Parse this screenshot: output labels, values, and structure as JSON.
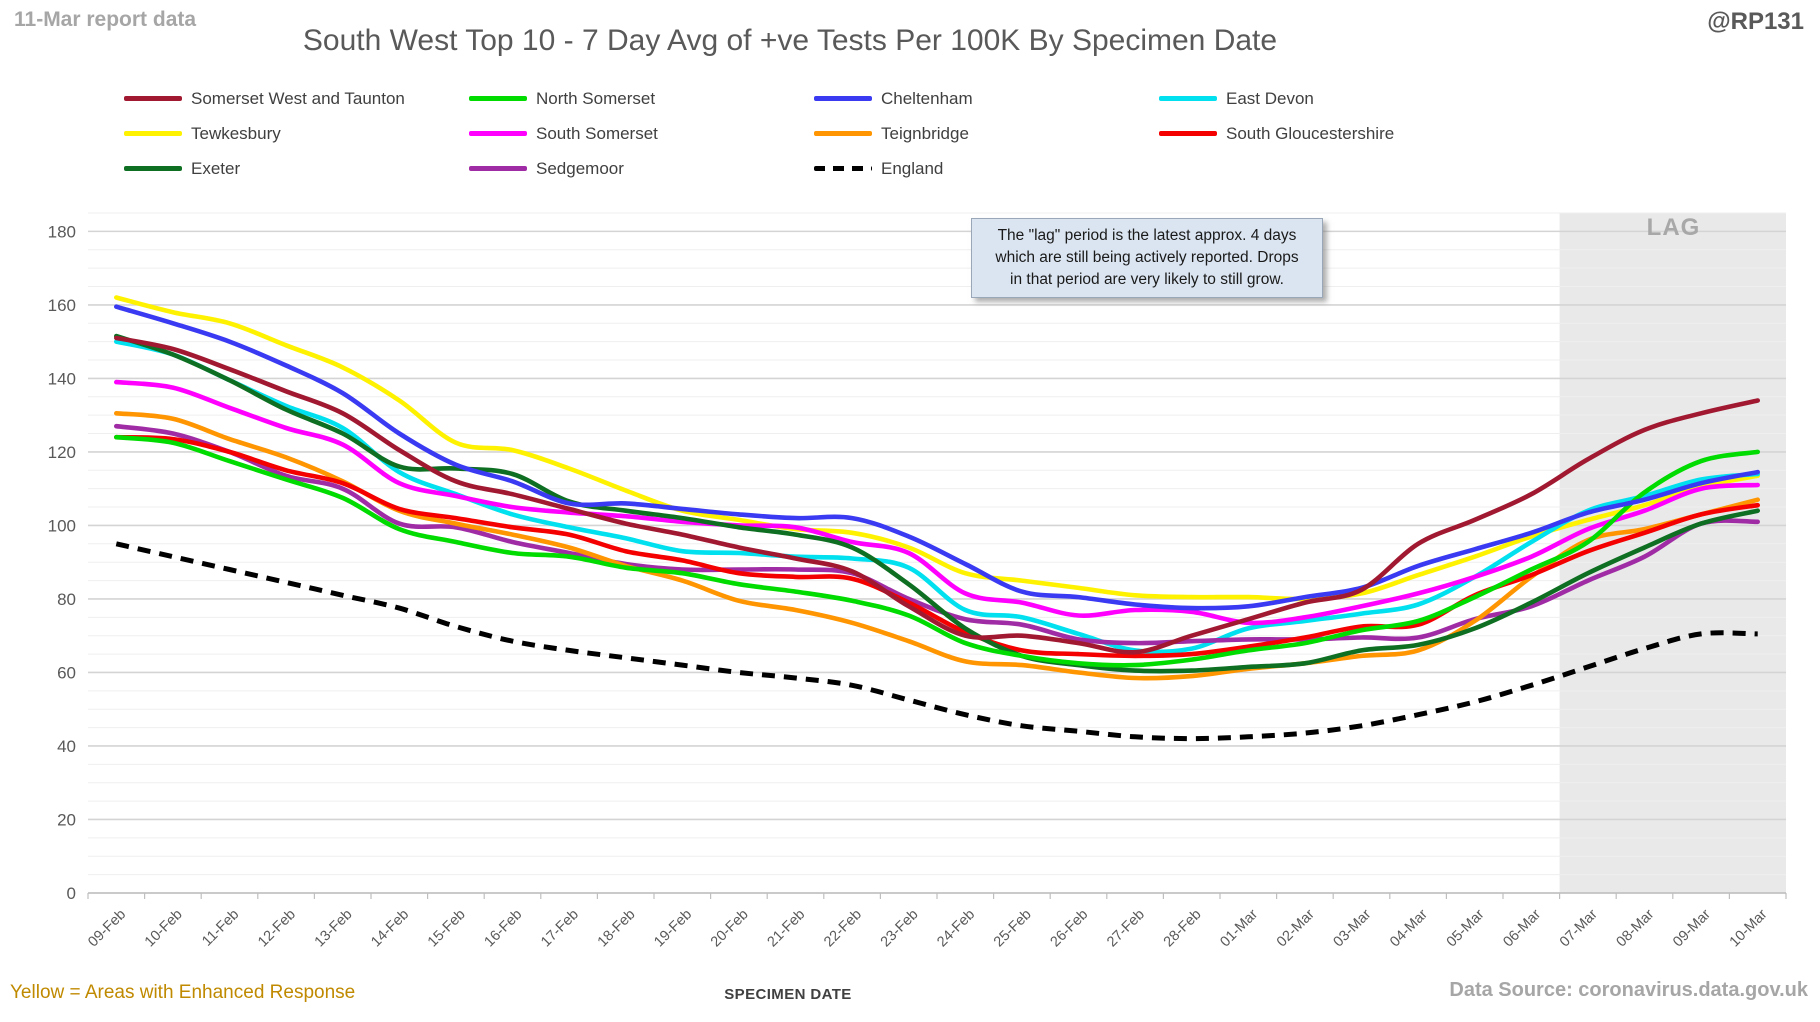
{
  "header": {
    "report_note": "11-Mar report data",
    "title": "South West Top 10 - 7 Day Avg of +ve Tests Per 100K By Specimen Date",
    "handle": "@RP131"
  },
  "annotation": {
    "lines": [
      "The \"lag\" period is the latest approx. 4 days",
      "which are still being actively reported.  Drops",
      "in that period are very likely to still grow."
    ]
  },
  "lag_label": "LAG",
  "footer": {
    "enhanced_note": "Yellow = Areas with Enhanced Response",
    "xlabel": "SPECIMEN DATE",
    "source": "Data Source: coronavirus.data.gov.uk"
  },
  "chart_data": {
    "type": "line",
    "title": "South West Top 10 - 7 Day Avg of +ve Tests Per 100K By Specimen Date",
    "xlabel": "SPECIMEN DATE",
    "ylabel": "",
    "ylim": [
      0,
      185
    ],
    "ytick_step": 20,
    "minor_grid_step": 5,
    "grid": "on",
    "legend_position": "top",
    "lag_band_start": "07-Mar",
    "lag_band_color": "#e9e9e9",
    "categories": [
      "09-Feb",
      "10-Feb",
      "11-Feb",
      "12-Feb",
      "13-Feb",
      "14-Feb",
      "15-Feb",
      "16-Feb",
      "17-Feb",
      "18-Feb",
      "19-Feb",
      "20-Feb",
      "21-Feb",
      "22-Feb",
      "23-Feb",
      "24-Feb",
      "25-Feb",
      "26-Feb",
      "27-Feb",
      "28-Feb",
      "01-Mar",
      "02-Mar",
      "03-Mar",
      "04-Mar",
      "05-Mar",
      "06-Mar",
      "07-Mar",
      "08-Mar",
      "09-Mar",
      "10-Mar"
    ],
    "draw_order": [
      4,
      3,
      5,
      9,
      6,
      7,
      8,
      1,
      2,
      0,
      10
    ],
    "series": [
      {
        "name": "Somerset West and Taunton",
        "color": "#a11931",
        "dash": false,
        "values": [
          151,
          148,
          142.5,
          136.5,
          130.5,
          120.5,
          112,
          108.5,
          104.5,
          100.5,
          97.5,
          94,
          91,
          87.5,
          78,
          70,
          70,
          68,
          65.5,
          70,
          74.5,
          79,
          82.5,
          95,
          101.5,
          108.5,
          118,
          126,
          130.5,
          134
        ]
      },
      {
        "name": "North Somerset",
        "color": "#00db00",
        "dash": false,
        "values": [
          124,
          122.5,
          117.5,
          112.5,
          107.5,
          99,
          95.5,
          92.5,
          91.5,
          88.5,
          87,
          84,
          82,
          79.5,
          75.5,
          68,
          64.5,
          62.5,
          62,
          63.5,
          66,
          68,
          71.5,
          74,
          80.5,
          88,
          95.5,
          109,
          117.5,
          120
        ]
      },
      {
        "name": "Cheltenham",
        "color": "#3a3af2",
        "dash": false,
        "values": [
          159.5,
          155,
          150,
          143.5,
          136,
          125,
          116.5,
          112,
          106,
          106,
          104.5,
          103,
          102,
          102,
          97,
          89.5,
          82,
          80.5,
          78.5,
          77.5,
          78,
          80.5,
          83,
          89,
          93.5,
          98,
          103.5,
          107,
          111.5,
          114.5
        ]
      },
      {
        "name": "East Devon",
        "color": "#00e0ee",
        "dash": false,
        "values": [
          150,
          146.5,
          139.5,
          132.5,
          126.5,
          114.5,
          108.5,
          103,
          99.5,
          96.5,
          93,
          92.5,
          91.5,
          91,
          88.5,
          77,
          75,
          70.5,
          66,
          66.5,
          72,
          74,
          76,
          78.5,
          86,
          95.5,
          104,
          108,
          112.5,
          114
        ]
      },
      {
        "name": "Tewkesbury",
        "color": "#fff200",
        "dash": false,
        "values": [
          162,
          158,
          155,
          149,
          143,
          134,
          122.5,
          120.5,
          115.5,
          109.5,
          104,
          101.5,
          99,
          98,
          94,
          87,
          85,
          83,
          81,
          80.5,
          80.5,
          80,
          81.5,
          86.5,
          91.5,
          97,
          101.5,
          105.5,
          110.5,
          113.5
        ]
      },
      {
        "name": "South Somerset",
        "color": "#ff00ff",
        "dash": false,
        "values": [
          139,
          137.5,
          132,
          126.5,
          122,
          111.5,
          108,
          105,
          103.5,
          102.5,
          101,
          100,
          99.5,
          95.5,
          92.5,
          81.5,
          79,
          75.5,
          77,
          76.5,
          73.5,
          75,
          78,
          81.5,
          86,
          91.5,
          99,
          104,
          110,
          111
        ]
      },
      {
        "name": "Teignbridge",
        "color": "#ff9500",
        "dash": false,
        "values": [
          130.5,
          129,
          123.5,
          118.5,
          112,
          104,
          100.5,
          97.5,
          94,
          89,
          85,
          79.5,
          77,
          73.5,
          68.5,
          63,
          62,
          60,
          58.5,
          59,
          61,
          62.5,
          64.5,
          66,
          74,
          86,
          96,
          99,
          103,
          107
        ]
      },
      {
        "name": "South Gloucestershire",
        "color": "#f40000",
        "dash": false,
        "values": [
          124,
          123.5,
          120,
          115,
          111.5,
          104.5,
          102,
          99.5,
          97.5,
          93,
          90.5,
          87,
          86,
          85.5,
          79,
          71,
          66,
          65,
          64.5,
          65,
          67,
          69.5,
          72.5,
          73,
          81,
          86.5,
          93,
          98,
          103,
          105.5
        ]
      },
      {
        "name": "Exeter",
        "color": "#0e6f22",
        "dash": false,
        "values": [
          151.5,
          146.5,
          139.5,
          131.5,
          125,
          116,
          115.5,
          114,
          106.5,
          104,
          102,
          99.5,
          97.5,
          94,
          84,
          72,
          64.5,
          62,
          60.5,
          60.5,
          61.5,
          62.5,
          66,
          67.5,
          72,
          79,
          87,
          94,
          100.5,
          104
        ]
      },
      {
        "name": "Sedgemoor",
        "color": "#a02ca5",
        "dash": false,
        "values": [
          127,
          125,
          120,
          113.5,
          110,
          100.5,
          99.5,
          95.5,
          92.5,
          89.5,
          88,
          88,
          88,
          87,
          80,
          74.5,
          73,
          69,
          68,
          68.5,
          69,
          69,
          69.5,
          69.5,
          74.5,
          78,
          85,
          91.5,
          100.5,
          101
        ]
      },
      {
        "name": "England",
        "color": "#000000",
        "dash": true,
        "values": [
          95,
          91.5,
          88,
          84.5,
          81,
          77.5,
          72.5,
          68.5,
          66,
          64,
          62,
          60,
          58.5,
          56.5,
          52.5,
          48.5,
          45.5,
          44,
          42.5,
          42,
          42.5,
          43.5,
          45.5,
          48.5,
          52,
          56.5,
          61.5,
          66.5,
          70.5,
          70.5
        ]
      }
    ]
  }
}
